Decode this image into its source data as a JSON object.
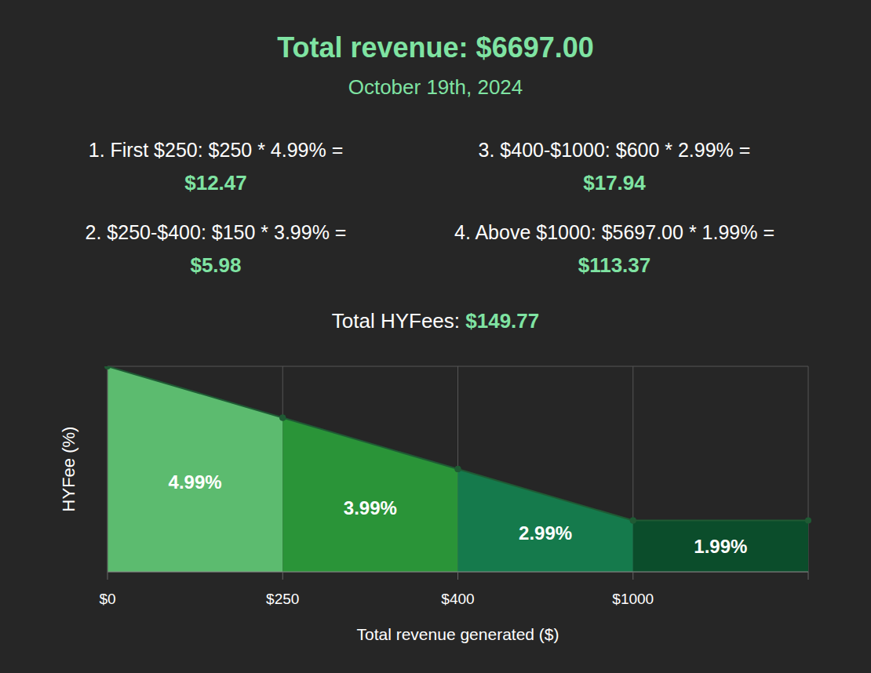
{
  "header": {
    "title": "Total revenue: $6697.00",
    "subtitle": "October 19th, 2024"
  },
  "tiers": [
    {
      "text": "1. First $250: $250 * 4.99% =",
      "fee": "$12.47"
    },
    {
      "text": "2. $250-$400: $150 * 3.99% =",
      "fee": "$5.98"
    },
    {
      "text": "3. $400-$1000: $600 * 2.99% =",
      "fee": "$17.94"
    },
    {
      "text": "4. Above $1000: $5697.00 * 1.99% =",
      "fee": "$113.37"
    }
  ],
  "total": {
    "label": "Total HYFees:",
    "value": "$149.77"
  },
  "chart_data": {
    "type": "area",
    "x_label": "Total revenue generated ($)",
    "y_label": "HYFee (%)",
    "categories": [
      "$0",
      "$250",
      "$400",
      "$1000",
      null
    ],
    "ylim": [
      0.99,
      4.99
    ],
    "yticks": [
      0.99,
      1.99,
      2.99,
      3.99,
      4.99
    ],
    "grid": true,
    "tick_labels": "x",
    "series": [
      {
        "name": "4.99%",
        "color": "#5cbb6f",
        "values": [
          4.99,
          3.99,
          null,
          null,
          null
        ]
      },
      {
        "name": "3.99%",
        "color": "#2a9438",
        "values": [
          null,
          3.99,
          2.99,
          null,
          null
        ]
      },
      {
        "name": "2.99%",
        "color": "#157a4c",
        "values": [
          null,
          null,
          2.99,
          1.99,
          null
        ]
      },
      {
        "name": "1.99%",
        "color": "#0b4d2b",
        "values": [
          null,
          null,
          null,
          1.99,
          1.99
        ]
      }
    ]
  }
}
